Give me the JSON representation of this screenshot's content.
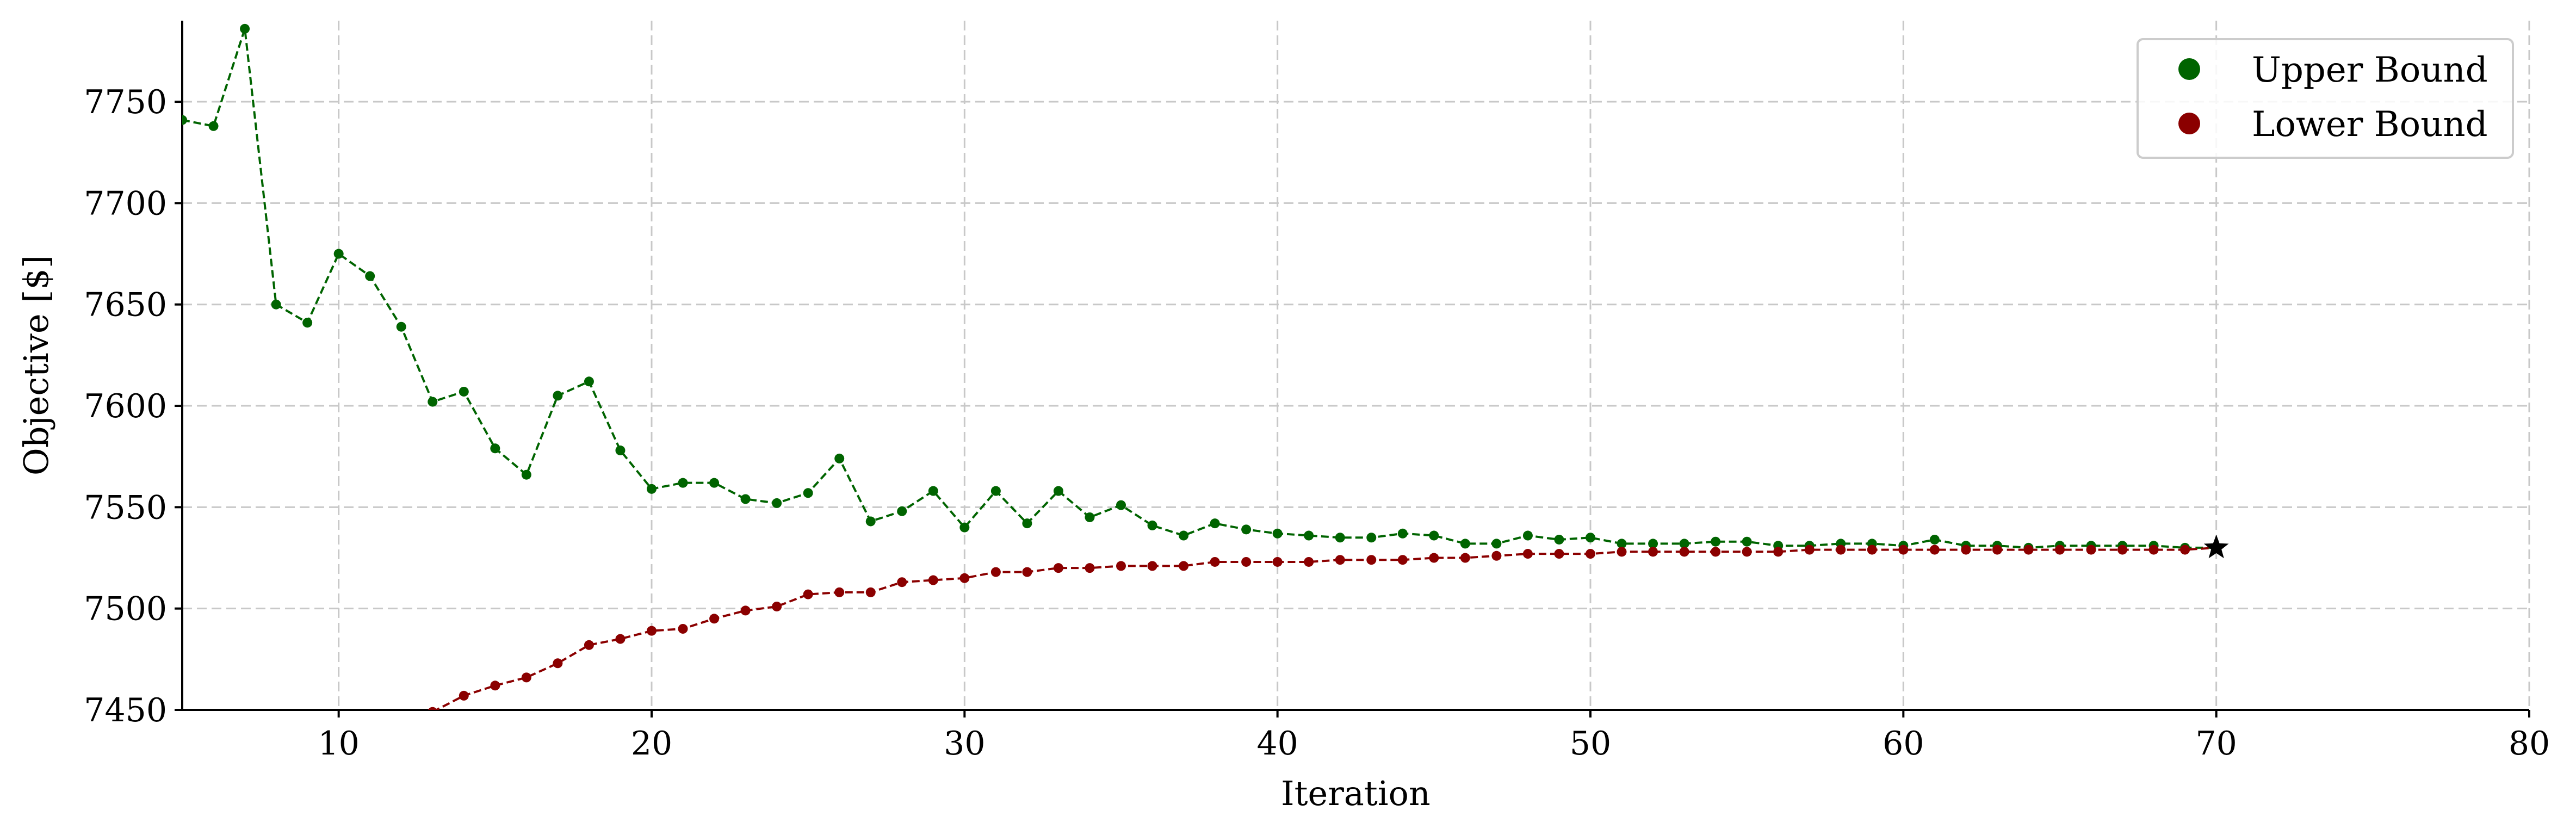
{
  "chart_data": {
    "type": "line",
    "title": "",
    "xlabel": "Iteration",
    "ylabel": "Objective [$]",
    "xlim": [
      5,
      80
    ],
    "ylim": [
      7450,
      7790
    ],
    "xticks": [
      10,
      20,
      30,
      40,
      50,
      60,
      70,
      80
    ],
    "yticks": [
      7450,
      7500,
      7550,
      7600,
      7650,
      7700,
      7750
    ],
    "grid": true,
    "legend_position": "top-right",
    "series": [
      {
        "name": "Upper Bound",
        "color": "#006400",
        "marker": "circle",
        "linestyle": "dashed",
        "x": [
          5,
          6,
          7,
          8,
          9,
          10,
          11,
          12,
          13,
          14,
          15,
          16,
          17,
          18,
          19,
          20,
          21,
          22,
          23,
          24,
          25,
          26,
          27,
          28,
          29,
          30,
          31,
          32,
          33,
          34,
          35,
          36,
          37,
          38,
          39,
          40,
          41,
          42,
          43,
          44,
          45,
          46,
          47,
          48,
          49,
          50,
          51,
          52,
          53,
          54,
          55,
          56,
          57,
          58,
          59,
          60,
          61,
          62,
          63,
          64,
          65,
          66,
          67,
          68,
          69,
          70
        ],
        "values": [
          7741,
          7738,
          7786,
          7650,
          7641,
          7675,
          7664,
          7639,
          7602,
          7607,
          7579,
          7566,
          7605,
          7612,
          7578,
          7559,
          7562,
          7562,
          7554,
          7552,
          7557,
          7574,
          7543,
          7548,
          7558,
          7540,
          7558,
          7542,
          7558,
          7545,
          7551,
          7541,
          7536,
          7542,
          7539,
          7537,
          7536,
          7535,
          7535,
          7537,
          7536,
          7532,
          7532,
          7536,
          7534,
          7535,
          7532,
          7532,
          7532,
          7533,
          7533,
          7531,
          7531,
          7532,
          7532,
          7531,
          7534,
          7531,
          7531,
          7530,
          7531,
          7531,
          7531,
          7531,
          7530,
          7530
        ]
      },
      {
        "name": "Lower Bound",
        "color": "#8b0000",
        "marker": "circle",
        "linestyle": "dashed",
        "x": [
          13,
          14,
          15,
          16,
          17,
          18,
          19,
          20,
          21,
          22,
          23,
          24,
          25,
          26,
          27,
          28,
          29,
          30,
          31,
          32,
          33,
          34,
          35,
          36,
          37,
          38,
          39,
          40,
          41,
          42,
          43,
          44,
          45,
          46,
          47,
          48,
          49,
          50,
          51,
          52,
          53,
          54,
          55,
          56,
          57,
          58,
          59,
          60,
          61,
          62,
          63,
          64,
          65,
          66,
          67,
          68,
          69,
          70
        ],
        "values": [
          7449,
          7457,
          7462,
          7466,
          7473,
          7482,
          7485,
          7489,
          7490,
          7495,
          7499,
          7501,
          7507,
          7508,
          7508,
          7513,
          7514,
          7515,
          7518,
          7518,
          7520,
          7520,
          7521,
          7521,
          7521,
          7523,
          7523,
          7523,
          7523,
          7524,
          7524,
          7524,
          7525,
          7525,
          7526,
          7527,
          7527,
          7527,
          7528,
          7528,
          7528,
          7528,
          7528,
          7528,
          7529,
          7529,
          7529,
          7529,
          7529,
          7529,
          7529,
          7529,
          7529,
          7529,
          7529,
          7529,
          7529,
          7530
        ]
      }
    ],
    "final_point": {
      "x": 70,
      "y": 7530,
      "marker": "star",
      "color": "#000000"
    }
  }
}
